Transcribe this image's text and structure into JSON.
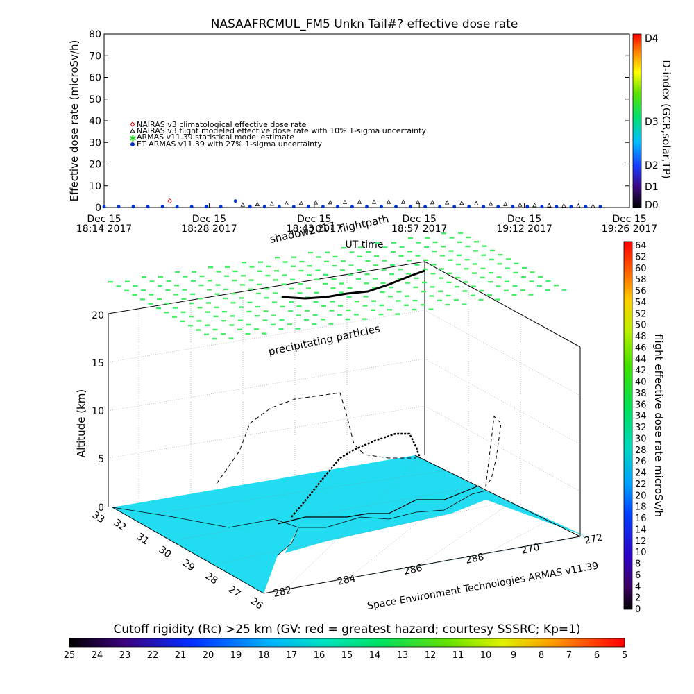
{
  "chart_data": [
    {
      "type": "scatter",
      "title": "NASAAFRCMUL_FM5 Unkn Tail#? effective dose rate",
      "xlabel": "UT time",
      "ylabel": "Effective dose rate (microSv/h)",
      "ylim": [
        0,
        80
      ],
      "yticks": [
        "0",
        "10",
        "20",
        "30",
        "40",
        "50",
        "60",
        "70",
        "80"
      ],
      "xticks": [
        {
          "date": "Dec 15",
          "time": "18:14 2017"
        },
        {
          "date": "Dec 15",
          "time": "18:28 2017"
        },
        {
          "date": "Dec 15",
          "time": "18:43 2017"
        },
        {
          "date": "Dec 15",
          "time": "18:57 2017"
        },
        {
          "date": "Dec 15",
          "time": "19:12 2017"
        },
        {
          "date": "Dec 15",
          "time": "19:26 2017"
        }
      ],
      "xrange_min": [
        0,
        72
      ],
      "legend": [
        {
          "label": "NAIRAS v3 climatological effective dose rate",
          "symbol": "diamond",
          "color": "#cc0000"
        },
        {
          "label": "NAIRAS v3 flight modeled effective dose rate with 10% 1-sigma uncertainty",
          "symbol": "triangle",
          "color": "#000000"
        },
        {
          "label": "ARMAS v11.39 statistical model estimate",
          "symbol": "star",
          "color": "#22cc22"
        },
        {
          "label": "ET ARMAS v11.39 with 27% 1-sigma uncertainty",
          "symbol": "dot",
          "color": "#0033cc"
        }
      ],
      "series": [
        {
          "name": "ET ARMAS v11.39 with 27% 1-sigma uncertainty",
          "x": [
            0,
            2,
            4,
            6,
            8,
            10,
            12,
            14,
            16,
            18,
            20,
            22,
            24,
            26,
            28,
            30,
            32,
            34,
            36,
            38,
            40,
            42,
            44,
            46,
            48,
            50,
            52,
            54,
            56,
            58,
            60,
            62,
            64,
            66,
            68
          ],
          "values": [
            0.4,
            0.4,
            0.4,
            0.4,
            0.4,
            0.4,
            0.4,
            0.4,
            0.4,
            3.0,
            0.4,
            0.4,
            0.4,
            0.4,
            0.4,
            0.4,
            0.4,
            0.4,
            0.4,
            0.4,
            0.4,
            0.4,
            0.4,
            0.4,
            0.4,
            0.4,
            0.4,
            0.4,
            0.4,
            0.4,
            0.4,
            0.4,
            0.4,
            0.4,
            0.4
          ]
        },
        {
          "name": "NAIRAS v3 flight modeled effective dose rate with 10% 1-sigma uncertainty",
          "x": [
            19,
            21,
            23,
            25,
            27,
            29,
            31,
            33,
            35,
            37,
            39,
            41,
            43,
            45,
            47,
            49,
            51,
            53,
            55,
            57,
            59,
            61,
            63,
            65,
            67
          ],
          "values": [
            1.2,
            1.4,
            1.6,
            1.8,
            2.0,
            2.2,
            2.3,
            2.4,
            2.5,
            2.5,
            2.5,
            2.5,
            2.4,
            2.3,
            2.2,
            2.0,
            1.8,
            1.6,
            1.4,
            1.2,
            1.0,
            0.9,
            0.8,
            0.7,
            0.6
          ]
        }
      ],
      "d_index_bar": {
        "label": "D-index (GCR,solar,TP)",
        "ticks": [
          "D4",
          "D3",
          "D2",
          "D1",
          "D0"
        ]
      }
    },
    {
      "type": "scatter",
      "title": "",
      "zlabel": "Altitude (km)",
      "zticks": [
        "0",
        "5",
        "10",
        "15",
        "20"
      ],
      "lat_ticks": [
        "33",
        "32",
        "31",
        "30",
        "29",
        "28",
        "27",
        "26"
      ],
      "lon_ticks": [
        "282",
        "284",
        "286",
        "288",
        "270",
        "272"
      ],
      "annotations": [
        "shadow2017",
        "flightpath",
        "precipitating particles",
        "Space Environment Technologies ARMAS v11.39"
      ],
      "colorbar_right": {
        "label": "flight effective dose rate microSv/h",
        "ticks": [
          "0",
          "2",
          "4",
          "6",
          "8",
          "10",
          "12",
          "14",
          "16",
          "18",
          "20",
          "22",
          "24",
          "26",
          "28",
          "30",
          "32",
          "34",
          "36",
          "38",
          "40",
          "42",
          "44",
          "46",
          "48",
          "50",
          "52",
          "54",
          "56",
          "58",
          "60",
          "62",
          "64"
        ]
      },
      "colorbar_bottom": {
        "label": "Cutoff rigidity (Rc) >25 km (GV: red = greatest hazard; courtesy SSSRC; Kp=1)",
        "ticks": [
          "25",
          "24",
          "23",
          "22",
          "21",
          "20",
          "19",
          "18",
          "17",
          "16",
          "15",
          "14",
          "13",
          "12",
          "11",
          "10",
          "9",
          "8",
          "7",
          "6",
          "5"
        ]
      }
    }
  ],
  "colors": {
    "ocean": "#22ddf2",
    "land": "#ffffff",
    "particles": "#44ee66",
    "flight_path": "#000000"
  }
}
